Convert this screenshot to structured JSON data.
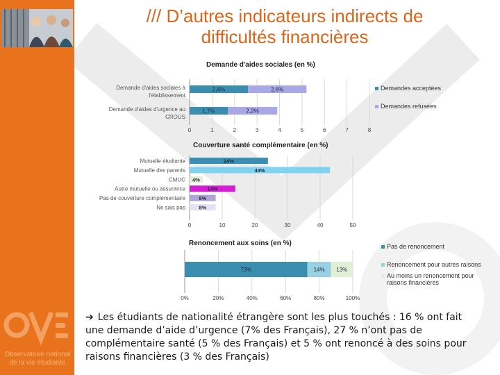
{
  "slide": {
    "title_line1": "/// D’autres indicateurs indirects de",
    "title_line2": "difficultés financières",
    "bullet_arrow": "➔",
    "bullet_text": "Les étudiants de nationalité étrangère sont les plus touchés : 16 % ont fait une demande d’aide d’urgence (7% des Français), 27 % n’ont pas de complémentaire santé (5 % des Français) et 5 % ont renoncé à des soins pour raisons financières (3 % des Français)"
  },
  "sidebar": {
    "logo_line1": "Observatoire national",
    "logo_line2": "de la vie étudiante"
  },
  "colors": {
    "orange": "#e8731c",
    "teal": "#3a8fb0",
    "lavender": "#a9a7e6",
    "cyan": "#7fd3ee",
    "magenta": "#d41ed3",
    "violet": "#b1a3d6",
    "lightblue": "#9ad1e2",
    "palegreen": "#e1f0d4"
  },
  "chart_data": [
    {
      "type": "bar",
      "orientation": "horizontal",
      "stacked": true,
      "title": "Demande d'aides sociales (en %)",
      "categories": [
        "Demande d'aides sociales à l'établissement",
        "Demande d'aides d'urgence au CROUS"
      ],
      "series": [
        {
          "name": "Demandes acceptées",
          "values": [
            2.6,
            1.7
          ],
          "labels": [
            "2,6%",
            "1,7%"
          ],
          "color": "#3a8fb0"
        },
        {
          "name": "Demandes refusées",
          "values": [
            2.6,
            2.2
          ],
          "labels": [
            "2,6%",
            "2,2%"
          ],
          "color": "#a9a7e6"
        }
      ],
      "xlim": [
        0,
        8
      ],
      "xticks": [
        "0",
        "1",
        "2",
        "3",
        "4",
        "5",
        "6",
        "7",
        "8"
      ],
      "grid": true,
      "legend": "right"
    },
    {
      "type": "bar",
      "orientation": "horizontal",
      "title": "Couverture santé complémentaire (en %)",
      "categories": [
        "Mutuelle étudiante",
        "Mutuelle des parents",
        "CMUC",
        "Autre mutuelle ou assurance",
        "Pas de couverture complémentaire",
        "Ne sais pas"
      ],
      "values": [
        24,
        43,
        4,
        14,
        8,
        8
      ],
      "labels": [
        "24%",
        "43%",
        "4%",
        "14%",
        "8%",
        "8%"
      ],
      "colors": [
        "#3a8fb0",
        "#7fd3ee",
        "#e1f0d4",
        "#d41ed3",
        "#b1a3d6",
        "#e6e2f4"
      ],
      "xlim": [
        0,
        50
      ],
      "xticks": [
        "0",
        "10",
        "20",
        "30",
        "40",
        "50"
      ],
      "grid": true
    },
    {
      "type": "bar",
      "orientation": "horizontal",
      "stacked": true,
      "title": "Renoncement aux soins (en %)",
      "categories": [
        ""
      ],
      "series": [
        {
          "name": "Pas de renoncement",
          "values": [
            73
          ],
          "labels": [
            "73%"
          ],
          "color": "#3a8fb0"
        },
        {
          "name": "Renoncement pour autres raisons",
          "values": [
            14
          ],
          "labels": [
            "14%"
          ],
          "color": "#9ad1e2"
        },
        {
          "name": "Au moins un renoncement pour raisons financières",
          "values": [
            13
          ],
          "labels": [
            "13%"
          ],
          "color": "#e1f0d4"
        }
      ],
      "xlim": [
        0,
        100
      ],
      "xticks": [
        "0%",
        "20%",
        "40%",
        "60%",
        "80%",
        "100%"
      ],
      "grid": true,
      "legend": "right"
    }
  ]
}
